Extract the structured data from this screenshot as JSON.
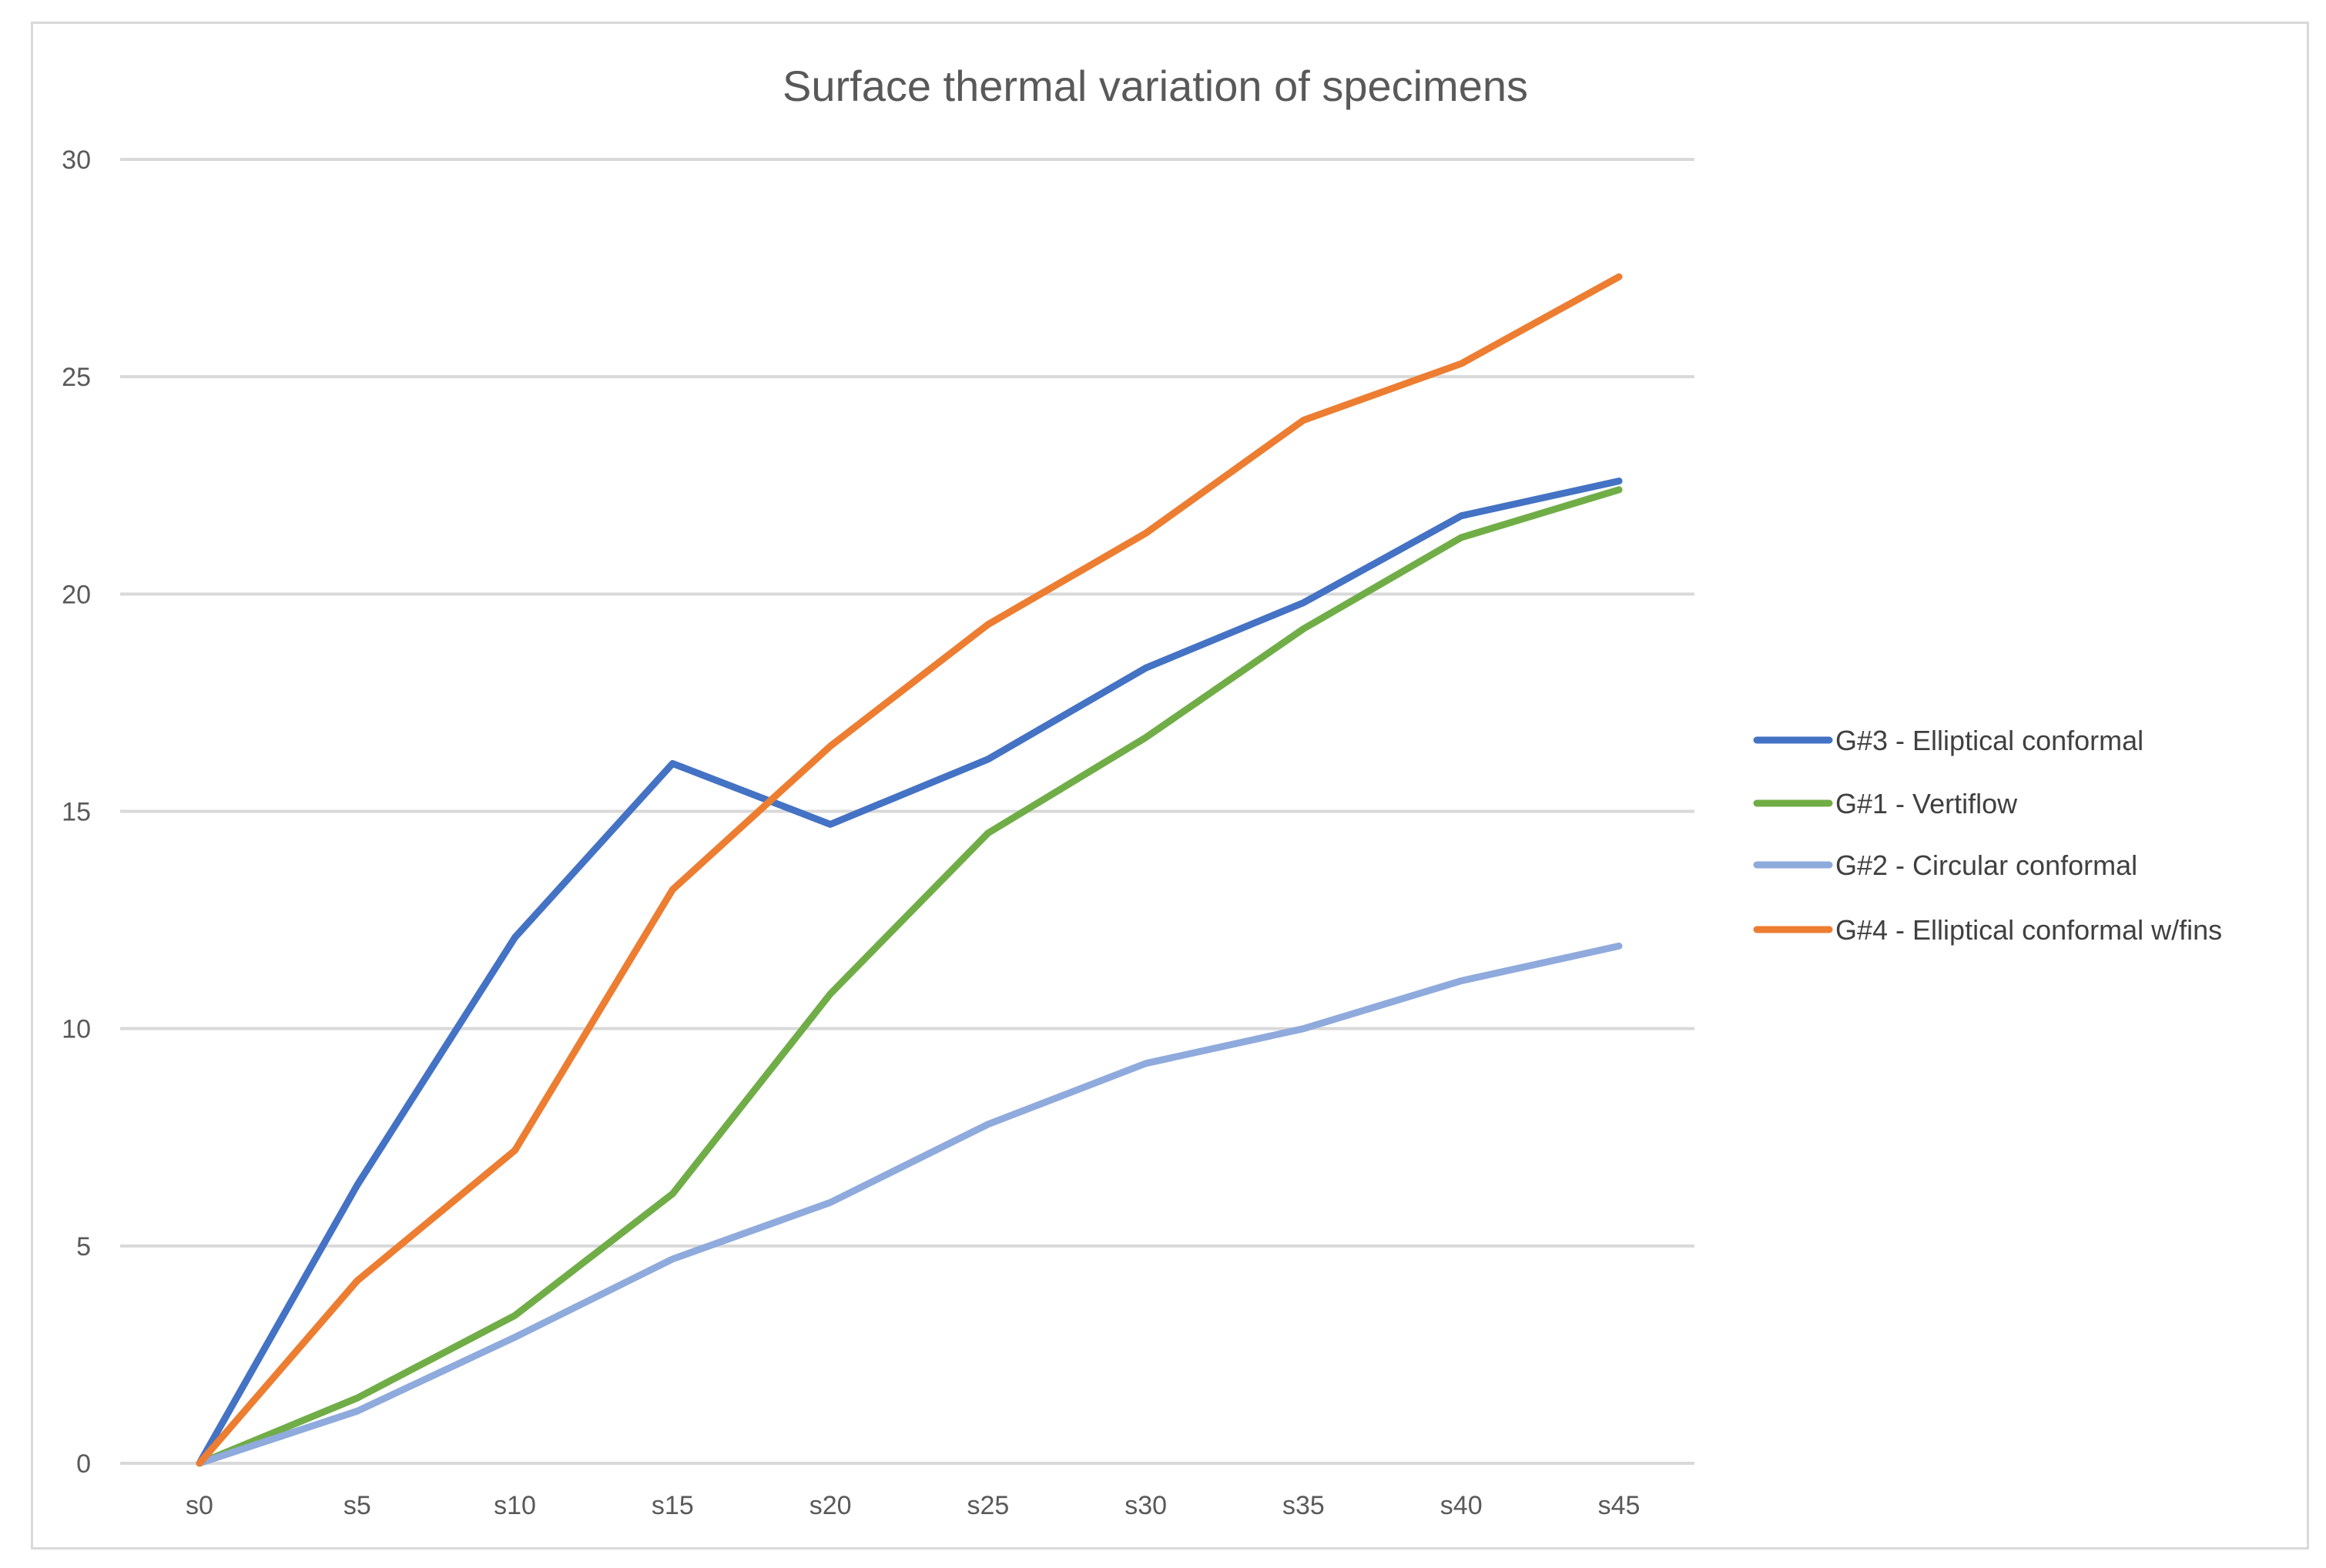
{
  "chart_data": {
    "type": "line",
    "title": "Surface thermal variation of specimens",
    "xlabel": "",
    "ylabel": "",
    "categories": [
      "s0",
      "s5",
      "s10",
      "s15",
      "s20",
      "s25",
      "s30",
      "s35",
      "s40",
      "s45"
    ],
    "ylim": [
      0,
      30
    ],
    "yticks": [
      "0",
      "5",
      "10",
      "15",
      "20",
      "25",
      "30"
    ],
    "grid": true,
    "legend_position": "right",
    "series": [
      {
        "name": "G#3 - Elliptical conformal",
        "color": "#4472c4",
        "values": [
          0,
          6.4,
          12.1,
          16.1,
          14.7,
          16.2,
          18.3,
          19.8,
          21.8,
          22.6
        ]
      },
      {
        "name": "G#1 - Vertiflow",
        "color": "#70ad47",
        "values": [
          0,
          1.5,
          3.4,
          6.2,
          10.8,
          14.5,
          16.7,
          19.2,
          21.3,
          22.4
        ]
      },
      {
        "name": "G#2 - Circular conformal",
        "color": "#8faadc",
        "values": [
          0,
          1.2,
          2.9,
          4.7,
          6.0,
          7.8,
          9.2,
          10.0,
          11.1,
          11.9
        ]
      },
      {
        "name": "G#4 - Elliptical conformal w/fins",
        "color": "#ed7d31",
        "values": [
          0,
          4.2,
          7.2,
          13.2,
          16.5,
          19.3,
          21.4,
          24.0,
          25.3,
          27.3
        ]
      }
    ]
  }
}
